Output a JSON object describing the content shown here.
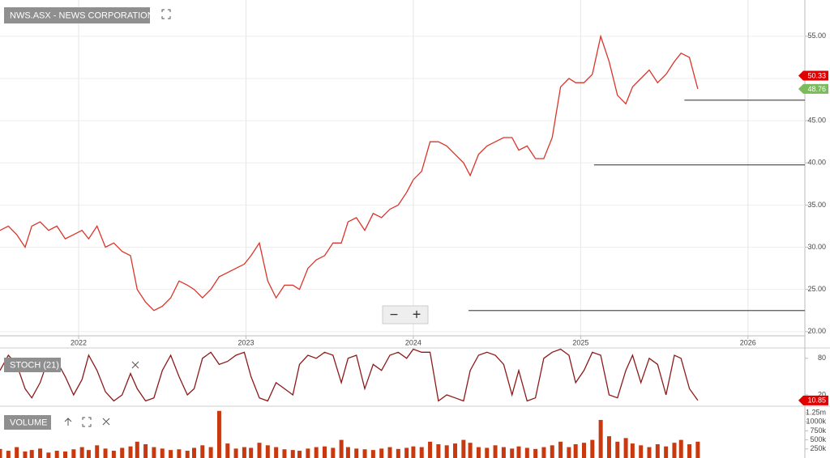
{
  "chart_data": [
    {
      "type": "line",
      "title": "NWS.ASX - NEWS CORPORATION..",
      "x": [
        2021.53,
        2021.58,
        2021.63,
        2021.68,
        2021.72,
        2021.77,
        2021.82,
        2021.87,
        2021.92,
        2021.97,
        2022.02,
        2022.06,
        2022.11,
        2022.16,
        2022.21,
        2022.26,
        2022.31,
        2022.35,
        2022.4,
        2022.45,
        2022.5,
        2022.55,
        2022.6,
        2022.65,
        2022.69,
        2022.74,
        2022.79,
        2022.84,
        2022.89,
        2022.94,
        2022.99,
        2023.03,
        2023.08,
        2023.13,
        2023.18,
        2023.23,
        2023.28,
        2023.32,
        2023.37,
        2023.42,
        2023.47,
        2023.52,
        2023.57,
        2023.61,
        2023.66,
        2023.71,
        2023.76,
        2023.81,
        2023.86,
        2023.91,
        2023.96,
        2024.0,
        2024.05,
        2024.1,
        2024.15,
        2024.2,
        2024.25,
        2024.3,
        2024.34,
        2024.39,
        2024.44,
        2024.49,
        2024.54,
        2024.59,
        2024.63,
        2024.68,
        2024.73,
        2024.78,
        2024.83,
        2024.88,
        2024.93,
        2024.97,
        2025.02,
        2025.07,
        2025.12,
        2025.17,
        2025.22,
        2025.27,
        2025.31,
        2025.36,
        2025.41,
        2025.46,
        2025.51,
        2025.56,
        2025.6,
        2025.65,
        2025.7
      ],
      "series": [
        {
          "color": "#d9352b",
          "values": [
            32,
            32.5,
            31.5,
            30,
            32.5,
            33,
            32,
            32.5,
            31,
            31.5,
            32,
            31,
            32.5,
            30,
            30.5,
            29.5,
            29,
            25,
            23.5,
            22.5,
            23,
            24,
            26,
            25.5,
            25,
            24,
            25,
            26.5,
            27,
            27.5,
            28,
            29,
            30.5,
            26,
            24,
            25.5,
            25.5,
            25,
            27.5,
            28.5,
            29,
            30.5,
            30.5,
            33,
            33.5,
            32,
            34,
            33.5,
            34.5,
            35,
            36.5,
            38,
            39,
            42.5,
            42.5,
            42,
            41,
            40,
            38.5,
            41,
            42,
            42.5,
            43,
            43,
            41.5,
            42,
            40.5,
            40.5,
            43,
            49,
            50,
            49.5,
            49.5,
            50.5,
            55,
            52,
            48,
            47,
            49,
            50,
            51,
            49.5,
            50.5,
            52,
            53,
            52.5,
            48.76
          ]
        }
      ],
      "xlim": [
        2021.53,
        2026.34
      ],
      "xticks": [
        2022,
        2023,
        2024,
        2025,
        2026
      ],
      "ylim": [
        19.5,
        59.3
      ],
      "yticks": [
        {
          "value": 20,
          "label": "20.00"
        },
        {
          "value": 25,
          "label": "25.00"
        },
        {
          "value": 30,
          "label": "30.00"
        },
        {
          "value": 35,
          "label": "35.00"
        },
        {
          "value": 40,
          "label": "40.00"
        },
        {
          "value": 45,
          "label": "45.00"
        },
        {
          "value": 50,
          "label": "50.00"
        },
        {
          "value": 55,
          "label": "55.00"
        }
      ],
      "grid": true,
      "price_tags": [
        {
          "value": 50.33,
          "color": "#e00000"
        },
        {
          "value": 48.76,
          "color": "#7cba5e"
        }
      ],
      "levels": [
        {
          "value": 47.43,
          "from": 2025.62
        },
        {
          "value": 39.76,
          "from": 2025.08
        },
        {
          "value": 22.5,
          "from": 2024.33
        }
      ]
    },
    {
      "type": "line",
      "title": "STOCH (21)",
      "series": [
        {
          "color": "#8b1a1a",
          "values": [
            60,
            85,
            70,
            30,
            15,
            40,
            80,
            75,
            50,
            20,
            45,
            85,
            60,
            25,
            10,
            20,
            55,
            30,
            10,
            15,
            60,
            85,
            50,
            20,
            30,
            80,
            90,
            70,
            75,
            85,
            90,
            50,
            15,
            10,
            40,
            30,
            20,
            70,
            85,
            80,
            90,
            85,
            40,
            80,
            85,
            30,
            70,
            60,
            85,
            90,
            80,
            95,
            90,
            90,
            10,
            20,
            15,
            10,
            60,
            85,
            90,
            85,
            70,
            20,
            60,
            10,
            15,
            80,
            90,
            95,
            85,
            40,
            60,
            90,
            85,
            20,
            15,
            60,
            85,
            40,
            80,
            70,
            20,
            85,
            80,
            30,
            10.85
          ]
        }
      ],
      "ylim": [
        4,
        97
      ],
      "yticks": [
        20,
        80
      ],
      "price_tags": [
        {
          "value": 10.85,
          "color": "#e00000"
        }
      ]
    },
    {
      "type": "bar",
      "title": "VOLUME",
      "color": "#c8390f",
      "values": [
        250000,
        200000,
        300000,
        180000,
        220000,
        260000,
        150000,
        200000,
        180000,
        240000,
        300000,
        220000,
        350000,
        260000,
        200000,
        280000,
        320000,
        450000,
        380000,
        300000,
        260000,
        220000,
        240000,
        200000,
        280000,
        350000,
        300000,
        1300000,
        400000,
        260000,
        300000,
        280000,
        420000,
        350000,
        300000,
        240000,
        220000,
        200000,
        260000,
        300000,
        320000,
        280000,
        500000,
        300000,
        260000,
        240000,
        220000,
        260000,
        300000,
        250000,
        280000,
        320000,
        300000,
        450000,
        380000,
        350000,
        400000,
        500000,
        420000,
        300000,
        280000,
        350000,
        300000,
        260000,
        320000,
        280000,
        250000,
        300000,
        350000,
        450000,
        300000,
        380000,
        420000,
        500000,
        1050000,
        600000,
        450000,
        550000,
        400000,
        350000,
        300000,
        380000,
        320000,
        420000,
        500000,
        380000,
        450000
      ],
      "ylim": [
        0,
        1406000
      ],
      "yticks": [
        {
          "value": 250000,
          "label": "250k"
        },
        {
          "value": 500000,
          "label": "500k"
        },
        {
          "value": 750000,
          "label": "750k"
        },
        {
          "value": 1000000,
          "label": "1000k"
        },
        {
          "value": 1250000,
          "label": "1.25m"
        }
      ]
    }
  ],
  "controls": {
    "zoom_out": "−",
    "zoom_in": "+"
  }
}
